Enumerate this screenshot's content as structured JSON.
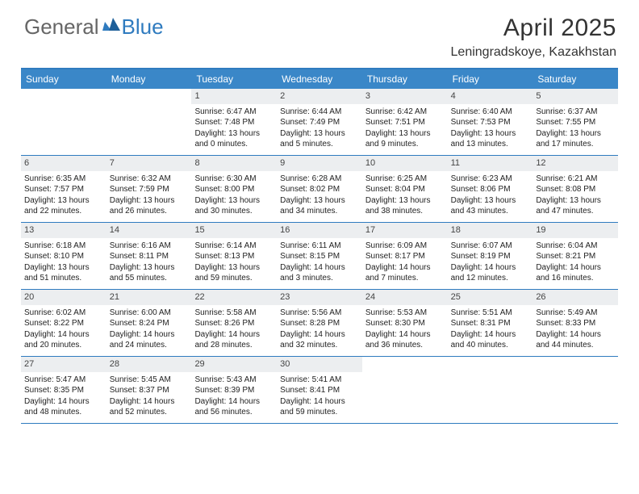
{
  "logo": {
    "general": "General",
    "blue": "Blue"
  },
  "title": "April 2025",
  "location": "Leningradskoye, Kazakhstan",
  "colors": {
    "accent": "#3a87c8",
    "rule": "#2f7bbf",
    "daynum_bg": "#eceef0",
    "text": "#222222",
    "title_text": "#333333"
  },
  "dayHeaders": [
    "Sunday",
    "Monday",
    "Tuesday",
    "Wednesday",
    "Thursday",
    "Friday",
    "Saturday"
  ],
  "weeks": [
    [
      {
        "blank": true
      },
      {
        "blank": true
      },
      {
        "n": "1",
        "sunrise": "Sunrise: 6:47 AM",
        "sunset": "Sunset: 7:48 PM",
        "daylight": "Daylight: 13 hours and 0 minutes."
      },
      {
        "n": "2",
        "sunrise": "Sunrise: 6:44 AM",
        "sunset": "Sunset: 7:49 PM",
        "daylight": "Daylight: 13 hours and 5 minutes."
      },
      {
        "n": "3",
        "sunrise": "Sunrise: 6:42 AM",
        "sunset": "Sunset: 7:51 PM",
        "daylight": "Daylight: 13 hours and 9 minutes."
      },
      {
        "n": "4",
        "sunrise": "Sunrise: 6:40 AM",
        "sunset": "Sunset: 7:53 PM",
        "daylight": "Daylight: 13 hours and 13 minutes."
      },
      {
        "n": "5",
        "sunrise": "Sunrise: 6:37 AM",
        "sunset": "Sunset: 7:55 PM",
        "daylight": "Daylight: 13 hours and 17 minutes."
      }
    ],
    [
      {
        "n": "6",
        "sunrise": "Sunrise: 6:35 AM",
        "sunset": "Sunset: 7:57 PM",
        "daylight": "Daylight: 13 hours and 22 minutes."
      },
      {
        "n": "7",
        "sunrise": "Sunrise: 6:32 AM",
        "sunset": "Sunset: 7:59 PM",
        "daylight": "Daylight: 13 hours and 26 minutes."
      },
      {
        "n": "8",
        "sunrise": "Sunrise: 6:30 AM",
        "sunset": "Sunset: 8:00 PM",
        "daylight": "Daylight: 13 hours and 30 minutes."
      },
      {
        "n": "9",
        "sunrise": "Sunrise: 6:28 AM",
        "sunset": "Sunset: 8:02 PM",
        "daylight": "Daylight: 13 hours and 34 minutes."
      },
      {
        "n": "10",
        "sunrise": "Sunrise: 6:25 AM",
        "sunset": "Sunset: 8:04 PM",
        "daylight": "Daylight: 13 hours and 38 minutes."
      },
      {
        "n": "11",
        "sunrise": "Sunrise: 6:23 AM",
        "sunset": "Sunset: 8:06 PM",
        "daylight": "Daylight: 13 hours and 43 minutes."
      },
      {
        "n": "12",
        "sunrise": "Sunrise: 6:21 AM",
        "sunset": "Sunset: 8:08 PM",
        "daylight": "Daylight: 13 hours and 47 minutes."
      }
    ],
    [
      {
        "n": "13",
        "sunrise": "Sunrise: 6:18 AM",
        "sunset": "Sunset: 8:10 PM",
        "daylight": "Daylight: 13 hours and 51 minutes."
      },
      {
        "n": "14",
        "sunrise": "Sunrise: 6:16 AM",
        "sunset": "Sunset: 8:11 PM",
        "daylight": "Daylight: 13 hours and 55 minutes."
      },
      {
        "n": "15",
        "sunrise": "Sunrise: 6:14 AM",
        "sunset": "Sunset: 8:13 PM",
        "daylight": "Daylight: 13 hours and 59 minutes."
      },
      {
        "n": "16",
        "sunrise": "Sunrise: 6:11 AM",
        "sunset": "Sunset: 8:15 PM",
        "daylight": "Daylight: 14 hours and 3 minutes."
      },
      {
        "n": "17",
        "sunrise": "Sunrise: 6:09 AM",
        "sunset": "Sunset: 8:17 PM",
        "daylight": "Daylight: 14 hours and 7 minutes."
      },
      {
        "n": "18",
        "sunrise": "Sunrise: 6:07 AM",
        "sunset": "Sunset: 8:19 PM",
        "daylight": "Daylight: 14 hours and 12 minutes."
      },
      {
        "n": "19",
        "sunrise": "Sunrise: 6:04 AM",
        "sunset": "Sunset: 8:21 PM",
        "daylight": "Daylight: 14 hours and 16 minutes."
      }
    ],
    [
      {
        "n": "20",
        "sunrise": "Sunrise: 6:02 AM",
        "sunset": "Sunset: 8:22 PM",
        "daylight": "Daylight: 14 hours and 20 minutes."
      },
      {
        "n": "21",
        "sunrise": "Sunrise: 6:00 AM",
        "sunset": "Sunset: 8:24 PM",
        "daylight": "Daylight: 14 hours and 24 minutes."
      },
      {
        "n": "22",
        "sunrise": "Sunrise: 5:58 AM",
        "sunset": "Sunset: 8:26 PM",
        "daylight": "Daylight: 14 hours and 28 minutes."
      },
      {
        "n": "23",
        "sunrise": "Sunrise: 5:56 AM",
        "sunset": "Sunset: 8:28 PM",
        "daylight": "Daylight: 14 hours and 32 minutes."
      },
      {
        "n": "24",
        "sunrise": "Sunrise: 5:53 AM",
        "sunset": "Sunset: 8:30 PM",
        "daylight": "Daylight: 14 hours and 36 minutes."
      },
      {
        "n": "25",
        "sunrise": "Sunrise: 5:51 AM",
        "sunset": "Sunset: 8:31 PM",
        "daylight": "Daylight: 14 hours and 40 minutes."
      },
      {
        "n": "26",
        "sunrise": "Sunrise: 5:49 AM",
        "sunset": "Sunset: 8:33 PM",
        "daylight": "Daylight: 14 hours and 44 minutes."
      }
    ],
    [
      {
        "n": "27",
        "sunrise": "Sunrise: 5:47 AM",
        "sunset": "Sunset: 8:35 PM",
        "daylight": "Daylight: 14 hours and 48 minutes."
      },
      {
        "n": "28",
        "sunrise": "Sunrise: 5:45 AM",
        "sunset": "Sunset: 8:37 PM",
        "daylight": "Daylight: 14 hours and 52 minutes."
      },
      {
        "n": "29",
        "sunrise": "Sunrise: 5:43 AM",
        "sunset": "Sunset: 8:39 PM",
        "daylight": "Daylight: 14 hours and 56 minutes."
      },
      {
        "n": "30",
        "sunrise": "Sunrise: 5:41 AM",
        "sunset": "Sunset: 8:41 PM",
        "daylight": "Daylight: 14 hours and 59 minutes."
      },
      {
        "blank": true
      },
      {
        "blank": true
      },
      {
        "blank": true
      }
    ]
  ]
}
